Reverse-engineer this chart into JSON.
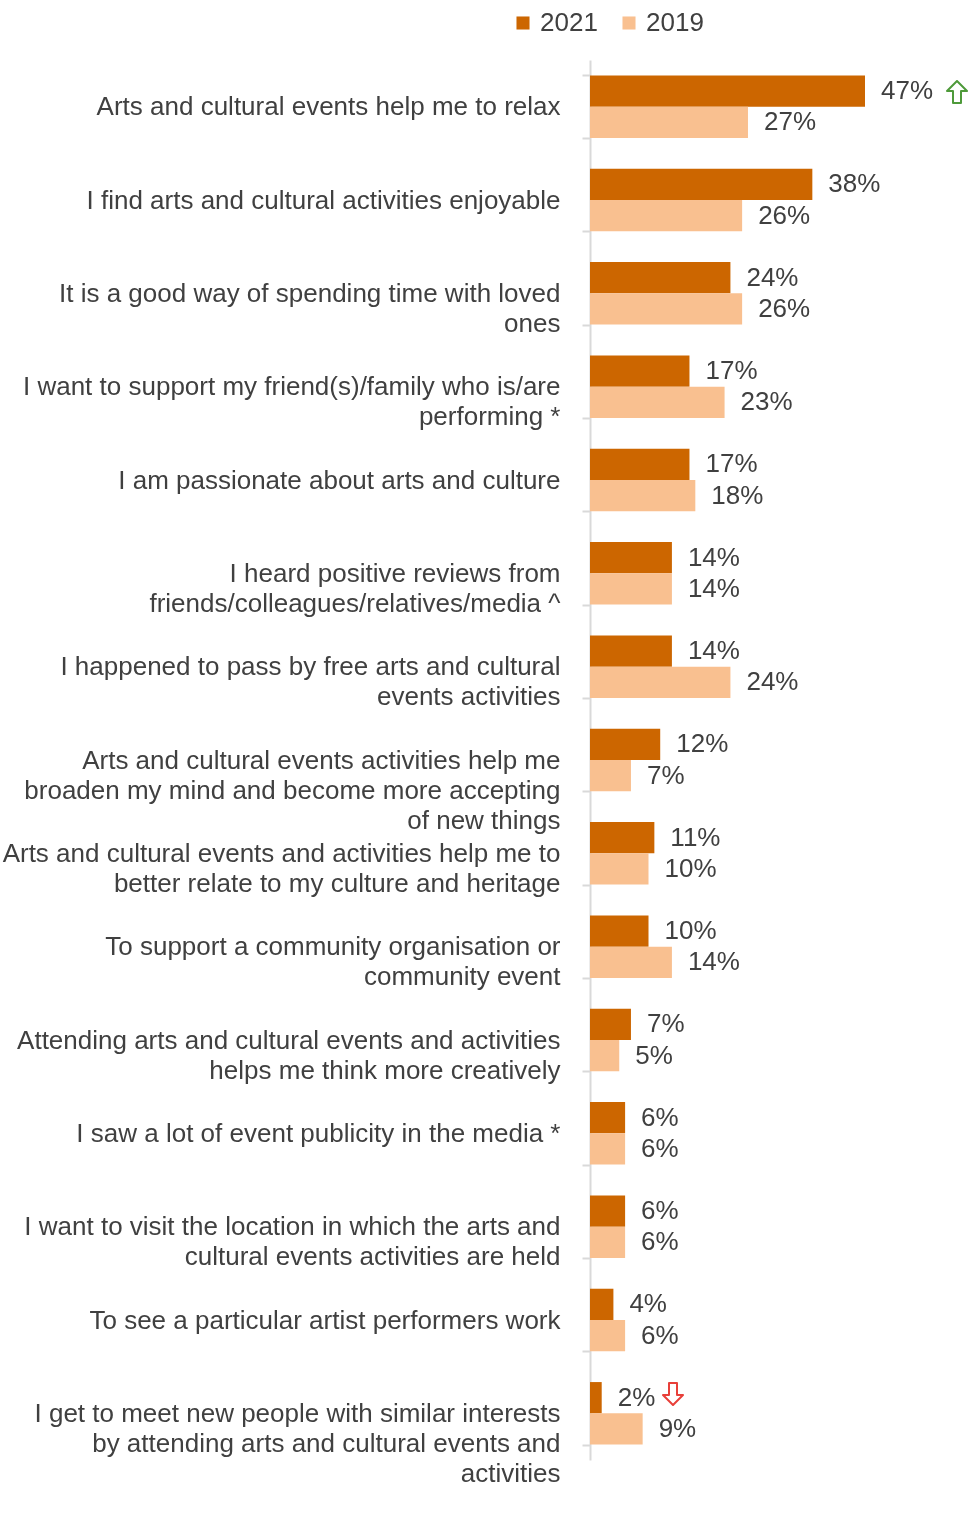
{
  "chart_data": {
    "type": "bar",
    "orientation": "horizontal",
    "legend": "top",
    "categories": [
      "Arts and cultural events help me to relax",
      "I find arts and cultural activities enjoyable",
      "It is a good way of spending time with loved ones",
      "I want to support my friend(s)/family who is/are performing *",
      "I am passionate about arts and culture",
      "I heard positive reviews from friends/colleagues/relatives/media ^",
      "I happened to pass by free arts and cultural events activities",
      "Arts and cultural events activities help me broaden my mind and become more accepting of new things",
      "Arts and cultural events and activities help me to better relate to my culture and heritage",
      "To support a community organisation or community event",
      "Attending arts and cultural events and activities helps me think more creatively",
      "I saw a lot of event publicity in the media *",
      "I want to visit the location in which the arts and cultural events activities are held",
      "To see a particular artist performers work",
      "I get to meet new people with similar interests by attending arts and cultural events and activities"
    ],
    "series": [
      {
        "name": "2021",
        "color": "#cc6600",
        "values": [
          47,
          38,
          24,
          17,
          17,
          14,
          14,
          12,
          11,
          10,
          7,
          6,
          6,
          4,
          2
        ],
        "value_labels": [
          "47%",
          "38%",
          "24%",
          "17%",
          "17%",
          "14%",
          "14%",
          "12%",
          "11%",
          "10%",
          "7%",
          "6%",
          "6%",
          "4%",
          "2%"
        ]
      },
      {
        "name": "2019",
        "color": "#f9c090",
        "values": [
          27,
          26,
          26,
          23,
          18,
          14,
          24,
          7,
          10,
          14,
          5,
          6,
          6,
          6,
          9
        ],
        "value_labels": [
          "27%",
          "26%",
          "26%",
          "23%",
          "18%",
          "14%",
          "24%",
          "7%",
          "10%",
          "14%",
          "5%",
          "6%",
          "6%",
          "6%",
          "9%"
        ]
      }
    ]
  }
}
